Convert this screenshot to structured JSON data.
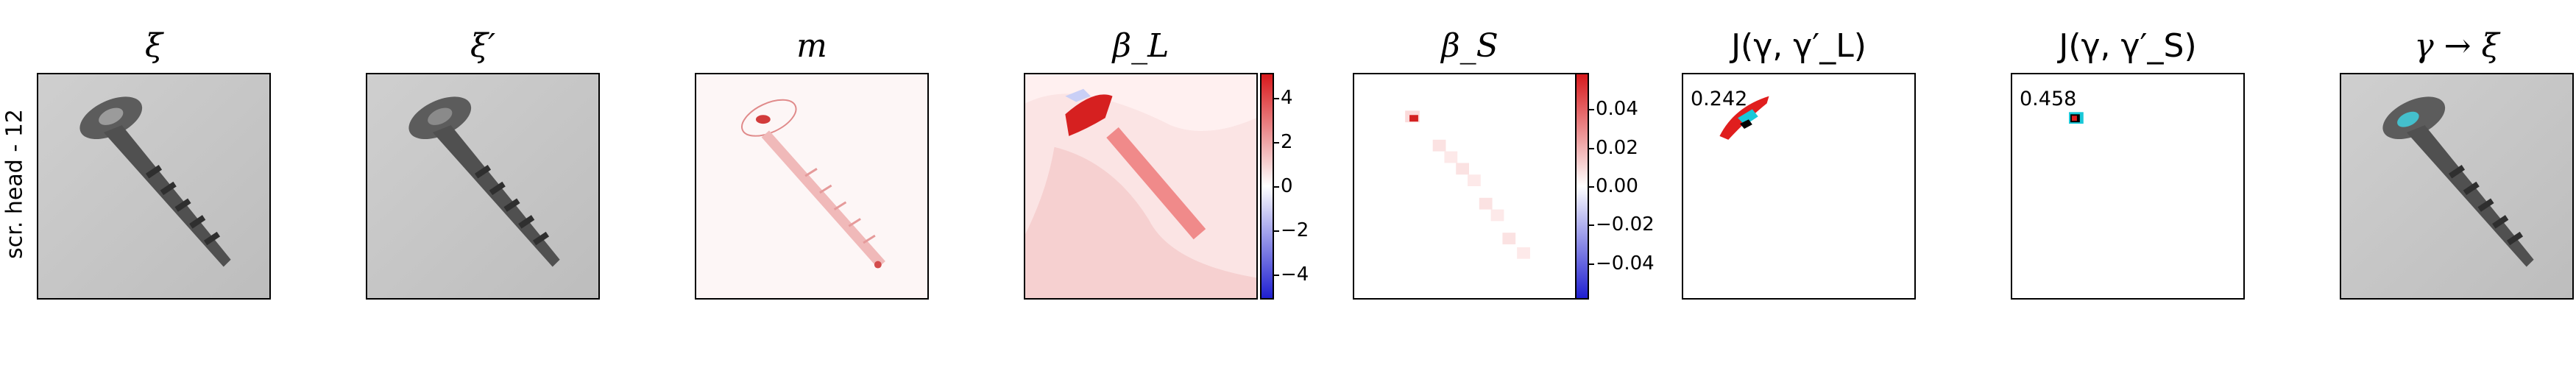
{
  "row_label": "scr. head - 12",
  "panels": [
    {
      "title": "ξ"
    },
    {
      "title": "ξ′"
    },
    {
      "title": "m"
    },
    {
      "title": "β_L"
    },
    {
      "title": "β_S"
    },
    {
      "title": "J(γ, γ′_L)",
      "score": "0.242"
    },
    {
      "title": "J(γ, γ′_S)",
      "score": "0.458"
    },
    {
      "title": "γ → ξ"
    }
  ],
  "colorbar_L": {
    "ticks": [
      "4",
      "2",
      "0",
      "−2",
      "−4"
    ]
  },
  "colorbar_S": {
    "ticks": [
      "0.04",
      "0.02",
      "0.00",
      "−0.02",
      "−0.04"
    ]
  },
  "colors": {
    "positive": "#d7191c",
    "negative": "#1f1fd0",
    "highlight": "#19c8d8",
    "image_bg": "#c8c8c8"
  }
}
